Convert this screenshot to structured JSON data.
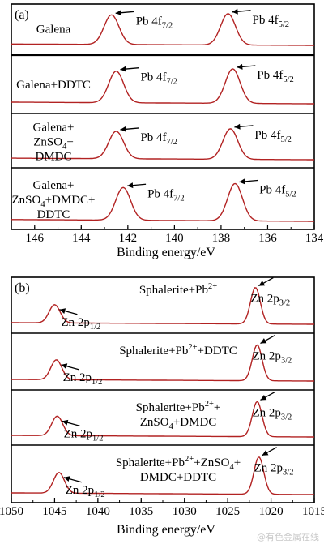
{
  "chart_data": [
    {
      "type": "line",
      "panel_label": "(a)",
      "xlabel": "Binding energy/eV",
      "xlim": [
        147,
        134
      ],
      "xticks": [
        146,
        144,
        142,
        140,
        138,
        136,
        134
      ],
      "line_color": "#b22222",
      "series": [
        {
          "label_lines": [
            "Galena"
          ],
          "peaks": [
            {
              "x": 142.7,
              "height": 0.85,
              "width": 0.45
            },
            {
              "x": 137.7,
              "height": 0.9,
              "width": 0.45
            }
          ],
          "annotations": [
            {
              "text": "Pb 4f",
              "sub": "7/2",
              "x": 142.7
            },
            {
              "text": "Pb 4f",
              "sub": "5/2",
              "x": 137.7
            }
          ]
        },
        {
          "label_lines": [
            "Galena+DDTC"
          ],
          "peaks": [
            {
              "x": 142.5,
              "height": 0.78,
              "width": 0.45
            },
            {
              "x": 137.5,
              "height": 0.85,
              "width": 0.45
            }
          ],
          "annotations": [
            {
              "text": "Pb 4f",
              "sub": "7/2",
              "x": 142.5
            },
            {
              "text": "Pb 4f",
              "sub": "5/2",
              "x": 137.5
            }
          ]
        },
        {
          "label_lines": [
            "Galena+",
            "ZnSO4+",
            "DMDC"
          ],
          "peaks": [
            {
              "x": 142.5,
              "height": 0.72,
              "width": 0.45
            },
            {
              "x": 137.6,
              "height": 0.8,
              "width": 0.45
            }
          ],
          "annotations": [
            {
              "text": "Pb 4f",
              "sub": "7/2",
              "x": 142.5
            },
            {
              "text": "Pb 4f",
              "sub": "5/2",
              "x": 137.6
            }
          ]
        },
        {
          "label_lines": [
            "Galena+",
            "ZnSO4+DMDC+",
            "DDTC"
          ],
          "peaks": [
            {
              "x": 142.2,
              "height": 0.72,
              "width": 0.45
            },
            {
              "x": 137.4,
              "height": 0.82,
              "width": 0.45
            }
          ],
          "annotations": [
            {
              "text": "Pb 4f",
              "sub": "7/2",
              "x": 142.2
            },
            {
              "text": "Pb 4f",
              "sub": "5/2",
              "x": 137.4
            }
          ]
        }
      ]
    },
    {
      "type": "line",
      "panel_label": "(b)",
      "xlabel": "Binding energy/eV",
      "xlim": [
        1050,
        1015
      ],
      "xticks": [
        1050,
        1045,
        1040,
        1035,
        1030,
        1025,
        1020,
        1015
      ],
      "line_color": "#b22222",
      "series": [
        {
          "label_lines": [
            "Sphalerite+Pb2+"
          ],
          "peaks": [
            {
              "x": 1045.0,
              "height": 0.45,
              "width": 0.9
            },
            {
              "x": 1021.8,
              "height": 0.9,
              "width": 0.8
            }
          ],
          "annotations": [
            {
              "text": "Zn 2p",
              "sub": "1/2",
              "x": 1045.0
            },
            {
              "text": "Zn 2p",
              "sub": "3/2",
              "x": 1021.8
            }
          ]
        },
        {
          "label_lines": [
            "Sphalerite+Pb2++DDTC"
          ],
          "peaks": [
            {
              "x": 1044.8,
              "height": 0.5,
              "width": 0.9
            },
            {
              "x": 1021.6,
              "height": 0.9,
              "width": 0.8
            }
          ],
          "annotations": [
            {
              "text": "Zn 2p",
              "sub": "1/2",
              "x": 1044.8
            },
            {
              "text": "Zn 2p",
              "sub": "3/2",
              "x": 1021.6
            }
          ]
        },
        {
          "label_lines": [
            "Sphalerite+Pb2++",
            "ZnSO4+DMDC"
          ],
          "peaks": [
            {
              "x": 1044.7,
              "height": 0.5,
              "width": 0.9
            },
            {
              "x": 1021.6,
              "height": 0.9,
              "width": 0.8
            }
          ],
          "annotations": [
            {
              "text": "Zn 2p",
              "sub": "1/2",
              "x": 1044.7
            },
            {
              "text": "Zn 2p",
              "sub": "3/2",
              "x": 1021.6
            }
          ]
        },
        {
          "label_lines": [
            "Sphalerite+Pb2++ZnSO4+",
            "DMDC+DDTC"
          ],
          "peaks": [
            {
              "x": 1044.5,
              "height": 0.5,
              "width": 0.9
            },
            {
              "x": 1021.4,
              "height": 0.9,
              "width": 0.8
            }
          ],
          "annotations": [
            {
              "text": "Zn 2p",
              "sub": "1/2",
              "x": 1044.5
            },
            {
              "text": "Zn 2p",
              "sub": "3/2",
              "x": 1021.4
            }
          ]
        }
      ]
    }
  ],
  "watermark": "@有色金属在线"
}
